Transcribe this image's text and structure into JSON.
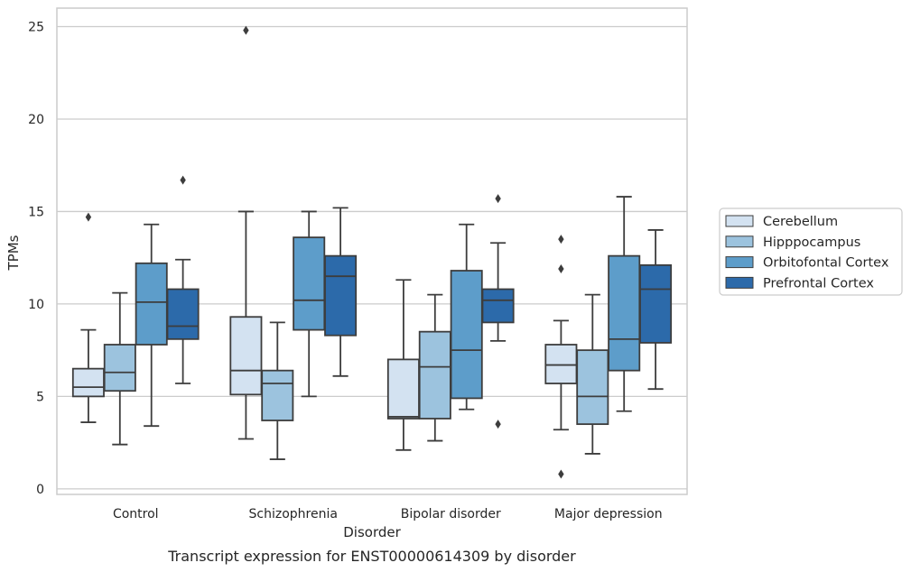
{
  "chart_data": {
    "type": "box",
    "caption": "Transcript expression for ENST00000614309 by disorder",
    "xlabel": "Disorder",
    "ylabel": "TPMs",
    "ylim": [
      -0.3,
      26
    ],
    "yticks": [
      0,
      5,
      10,
      15,
      20,
      25
    ],
    "grid": "horizontal",
    "legend_position": "right-outside",
    "categories": [
      "Control",
      "Schizophrenia",
      "Bipolar disorder",
      "Major depression"
    ],
    "series": [
      {
        "name": "Cerebellum",
        "color": "#d3e2f1",
        "boxes": [
          {
            "whislo": 3.6,
            "q1": 5.0,
            "med": 5.5,
            "q3": 6.5,
            "whishi": 8.6,
            "fliers": [
              14.7
            ]
          },
          {
            "whislo": 2.7,
            "q1": 5.1,
            "med": 6.4,
            "q3": 9.3,
            "whishi": 15.0,
            "fliers": [
              24.8
            ]
          },
          {
            "whislo": 2.1,
            "q1": 3.8,
            "med": 3.9,
            "q3": 7.0,
            "whishi": 11.3,
            "fliers": []
          },
          {
            "whislo": 3.2,
            "q1": 5.7,
            "med": 6.7,
            "q3": 7.8,
            "whishi": 9.1,
            "fliers": [
              13.5,
              11.9,
              0.8
            ]
          }
        ]
      },
      {
        "name": "Hipppocampus",
        "color": "#9cc3de",
        "boxes": [
          {
            "whislo": 2.4,
            "q1": 5.3,
            "med": 6.3,
            "q3": 7.8,
            "whishi": 10.6,
            "fliers": []
          },
          {
            "whislo": 1.6,
            "q1": 3.7,
            "med": 5.7,
            "q3": 6.4,
            "whishi": 9.0,
            "fliers": []
          },
          {
            "whislo": 2.6,
            "q1": 3.8,
            "med": 6.6,
            "q3": 8.5,
            "whishi": 10.5,
            "fliers": []
          },
          {
            "whislo": 1.9,
            "q1": 3.5,
            "med": 5.0,
            "q3": 7.5,
            "whishi": 10.5,
            "fliers": []
          }
        ]
      },
      {
        "name": "Orbitofontal Cortex",
        "color": "#5d9dca",
        "boxes": [
          {
            "whislo": 3.4,
            "q1": 7.8,
            "med": 10.1,
            "q3": 12.2,
            "whishi": 14.3,
            "fliers": []
          },
          {
            "whislo": 5.0,
            "q1": 8.6,
            "med": 10.2,
            "q3": 13.6,
            "whishi": 15.0,
            "fliers": []
          },
          {
            "whislo": 4.3,
            "q1": 4.9,
            "med": 7.5,
            "q3": 11.8,
            "whishi": 14.3,
            "fliers": []
          },
          {
            "whislo": 4.2,
            "q1": 6.4,
            "med": 8.1,
            "q3": 12.6,
            "whishi": 15.8,
            "fliers": []
          }
        ]
      },
      {
        "name": "Prefrontal Cortex",
        "color": "#2c6aaa",
        "boxes": [
          {
            "whislo": 5.7,
            "q1": 8.1,
            "med": 8.8,
            "q3": 10.8,
            "whishi": 12.4,
            "fliers": [
              16.7
            ]
          },
          {
            "whislo": 6.1,
            "q1": 8.3,
            "med": 11.5,
            "q3": 12.6,
            "whishi": 15.2,
            "fliers": []
          },
          {
            "whislo": 8.0,
            "q1": 9.0,
            "med": 10.2,
            "q3": 10.8,
            "whishi": 13.3,
            "fliers": [
              15.7,
              3.5
            ]
          },
          {
            "whislo": 5.4,
            "q1": 7.9,
            "med": 10.8,
            "q3": 12.1,
            "whishi": 14.0,
            "fliers": []
          }
        ]
      }
    ]
  }
}
